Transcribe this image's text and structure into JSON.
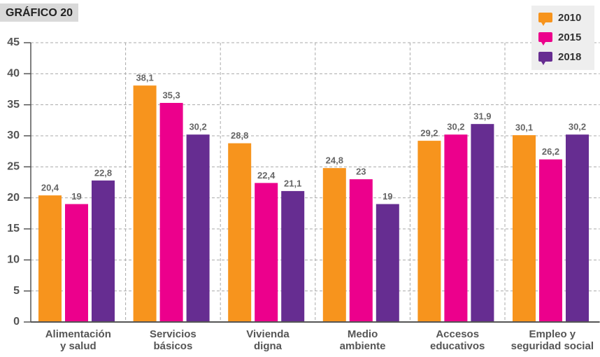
{
  "chart_data": {
    "type": "bar",
    "title": "GRÁFICO 20",
    "categories": [
      "Alimentación\ny salud",
      "Servicios\nbásicos",
      "Vivienda\ndigna",
      "Medio\nambiente",
      "Accesos\neducativos",
      "Empleo y\nseguridad social"
    ],
    "series": [
      {
        "name": "2010",
        "color": "#f7941d",
        "values": [
          20.4,
          38.1,
          28.8,
          24.8,
          29.2,
          30.1
        ],
        "value_labels": [
          "20,4",
          "38,1",
          "28,8",
          "24,8",
          "29,2",
          "30,1"
        ]
      },
      {
        "name": "2015",
        "color": "#ec008c",
        "values": [
          19,
          35.3,
          22.4,
          23,
          30.2,
          26.2
        ],
        "value_labels": [
          "19",
          "35,3",
          "22,4",
          "23",
          "30,2",
          "26,2"
        ]
      },
      {
        "name": "2018",
        "color": "#662d91",
        "values": [
          22.8,
          30.2,
          21.1,
          19,
          31.9,
          30.2
        ],
        "value_labels": [
          "22,8",
          "30,2",
          "21,1",
          "19",
          "31,9",
          "30,2"
        ]
      }
    ],
    "ylim": [
      0,
      45
    ],
    "yticks": [
      0,
      5,
      10,
      15,
      20,
      25,
      30,
      35,
      40,
      45
    ],
    "grid": true,
    "legend": "upper right"
  }
}
